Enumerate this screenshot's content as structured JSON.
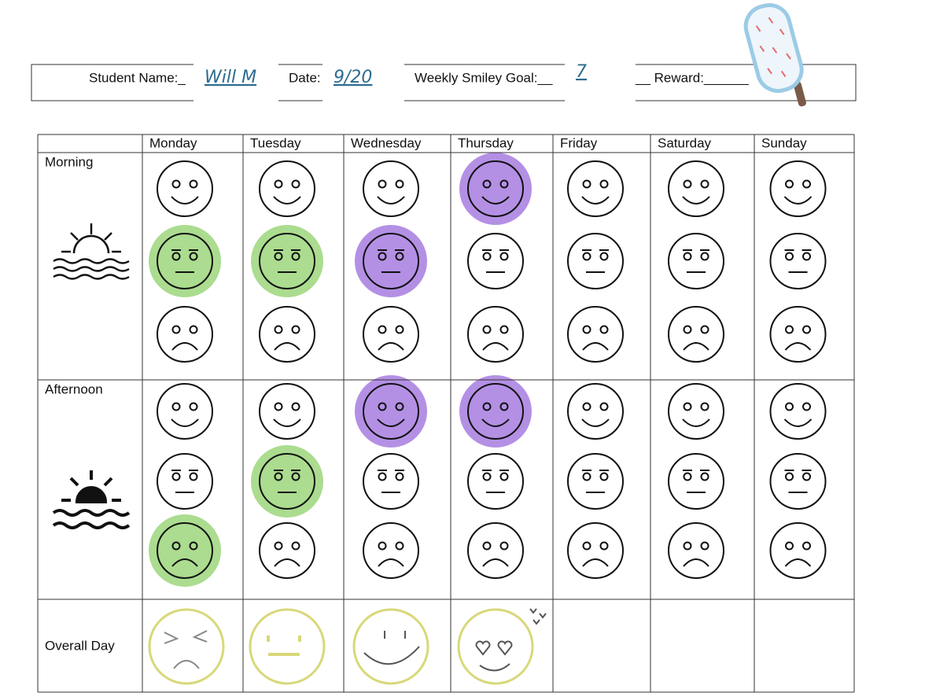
{
  "header": {
    "student_label": "Student Name:_",
    "student_name": "Will M",
    "date_label": "Date:",
    "date": "9/20",
    "goal_label": "Weekly Smiley Goal:__",
    "goal": "7",
    "reward_label": "__ Reward:______"
  },
  "table": {
    "days": [
      "Monday",
      "Tuesday",
      "Wednesday",
      "Thursday",
      "Friday",
      "Saturday",
      "Sunday"
    ],
    "rows": [
      "Morning",
      "Afternoon",
      "Overall Day"
    ]
  }
}
